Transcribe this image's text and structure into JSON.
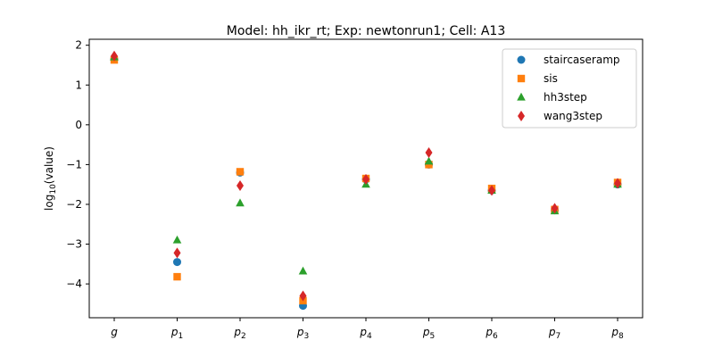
{
  "chart_data": {
    "type": "scatter",
    "title": "Model: hh_ikr_rt; Exp: newtonrun1; Cell: A13",
    "ylabel_text": "log",
    "ylabel_sub": "10",
    "ylabel_rest": "(value)",
    "xlabel": "",
    "ylim": [
      -4.85,
      2.15
    ],
    "yticks": [
      2,
      1,
      0,
      -1,
      -2,
      -3,
      -4
    ],
    "ytick_labels": [
      "2",
      "1",
      "0",
      "−1",
      "−2",
      "−3",
      "−4"
    ],
    "categories": [
      {
        "base": "g",
        "sub": ""
      },
      {
        "base": "p",
        "sub": "1"
      },
      {
        "base": "p",
        "sub": "2"
      },
      {
        "base": "p",
        "sub": "3"
      },
      {
        "base": "p",
        "sub": "4"
      },
      {
        "base": "p",
        "sub": "5"
      },
      {
        "base": "p",
        "sub": "6"
      },
      {
        "base": "p",
        "sub": "7"
      },
      {
        "base": "p",
        "sub": "8"
      }
    ],
    "series": [
      {
        "name": "staircaseramp",
        "marker": "circle",
        "color": "#1f77b4",
        "values": [
          1.65,
          -3.45,
          -1.2,
          -4.55,
          -1.37,
          -1.0,
          -1.65,
          -2.15,
          -1.5
        ]
      },
      {
        "name": "sis",
        "marker": "square",
        "color": "#ff7f0e",
        "values": [
          1.63,
          -3.82,
          -1.18,
          -4.42,
          -1.35,
          -1.0,
          -1.6,
          -2.13,
          -1.45
        ]
      },
      {
        "name": "hh3step",
        "marker": "triangle",
        "color": "#2ca02c",
        "values": [
          1.7,
          -2.9,
          -1.97,
          -3.68,
          -1.5,
          -0.92,
          -1.65,
          -2.17,
          -1.5
        ]
      },
      {
        "name": "wang3step",
        "marker": "diamond",
        "color": "#d62728",
        "values": [
          1.73,
          -3.22,
          -1.53,
          -4.3,
          -1.37,
          -0.7,
          -1.65,
          -2.1,
          -1.47
        ]
      }
    ],
    "legend_position": "top-right"
  }
}
